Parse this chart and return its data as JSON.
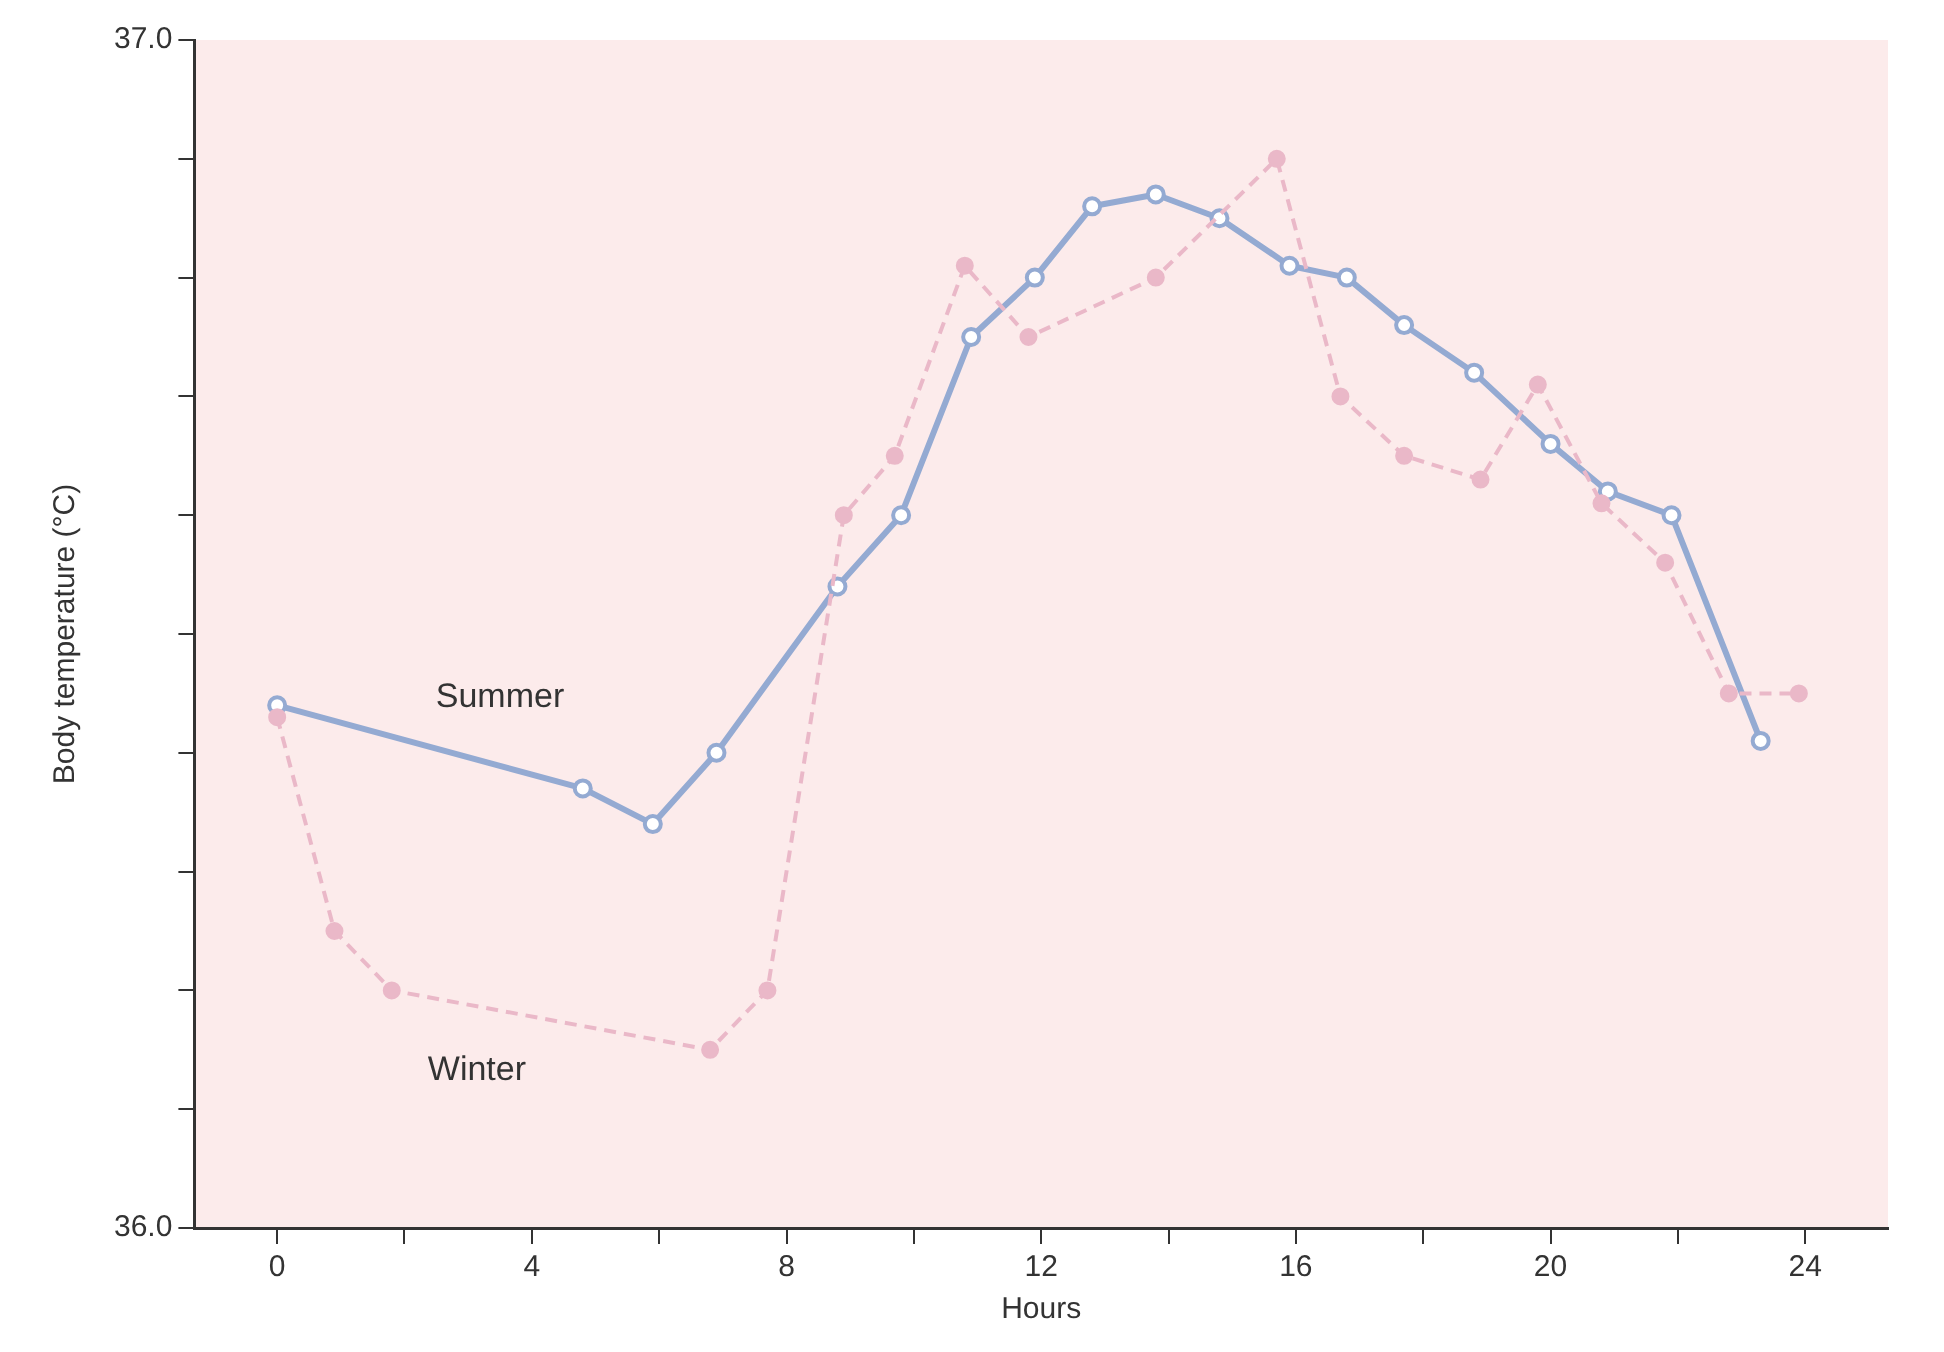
{
  "chart_data": {
    "type": "line",
    "xlabel": "Hours",
    "ylabel": "Body temperature (°C)",
    "xlim": [
      -1.3,
      25.3
    ],
    "ylim": [
      36.0,
      37.0
    ],
    "xticks": [
      0,
      {
        "value": 2,
        "label": null
      },
      4,
      {
        "value": 6,
        "label": null
      },
      8,
      {
        "value": 10,
        "label": null
      },
      12,
      {
        "value": 14,
        "label": null
      },
      16,
      {
        "value": 18,
        "label": null
      },
      20,
      {
        "value": 22,
        "label": null
      },
      24
    ],
    "yticks": [
      {
        "value": 36.0,
        "label": "36.0"
      },
      {
        "value": 36.1,
        "label": null
      },
      {
        "value": 36.2,
        "label": null
      },
      {
        "value": 36.3,
        "label": null
      },
      {
        "value": 36.4,
        "label": null
      },
      {
        "value": 36.5,
        "label": null
      },
      {
        "value": 36.6,
        "label": null
      },
      {
        "value": 36.7,
        "label": null
      },
      {
        "value": 36.8,
        "label": null
      },
      {
        "value": 36.9,
        "label": null
      },
      {
        "value": 37.0,
        "label": "37.0"
      }
    ],
    "grid": false,
    "legend": false,
    "series": [
      {
        "name": "Winter",
        "color": "#eab8c8",
        "marker": "circle",
        "line_style": "dashed",
        "x": [
          0,
          0.9,
          1.8,
          6.8,
          7.7,
          8.9,
          9.7,
          10.8,
          11.8,
          13.8,
          15.7,
          16.7,
          17.7,
          18.9,
          19.8,
          20.8,
          21.8,
          22.8,
          23.9
        ],
        "values": [
          36.43,
          36.25,
          36.2,
          36.15,
          36.2,
          36.6,
          36.65,
          36.81,
          36.75,
          36.8,
          36.9,
          36.7,
          36.65,
          36.63,
          36.71,
          36.61,
          36.56,
          36.45,
          36.45
        ]
      },
      {
        "name": "Summer",
        "color": "#94aad2",
        "marker": "circle",
        "line_style": "solid",
        "x": [
          0,
          4.8,
          5.9,
          6.9,
          8.8,
          9.8,
          10.9,
          11.9,
          12.8,
          13.8,
          14.8,
          15.9,
          16.8,
          17.7,
          18.8,
          20,
          20.9,
          21.9,
          23.3
        ],
        "values": [
          36.44,
          36.37,
          36.34,
          36.4,
          36.54,
          36.6,
          36.75,
          36.8,
          36.86,
          36.87,
          36.85,
          36.81,
          36.8,
          36.76,
          36.72,
          36.66,
          36.62,
          36.6,
          36.41
        ]
      }
    ]
  }
}
